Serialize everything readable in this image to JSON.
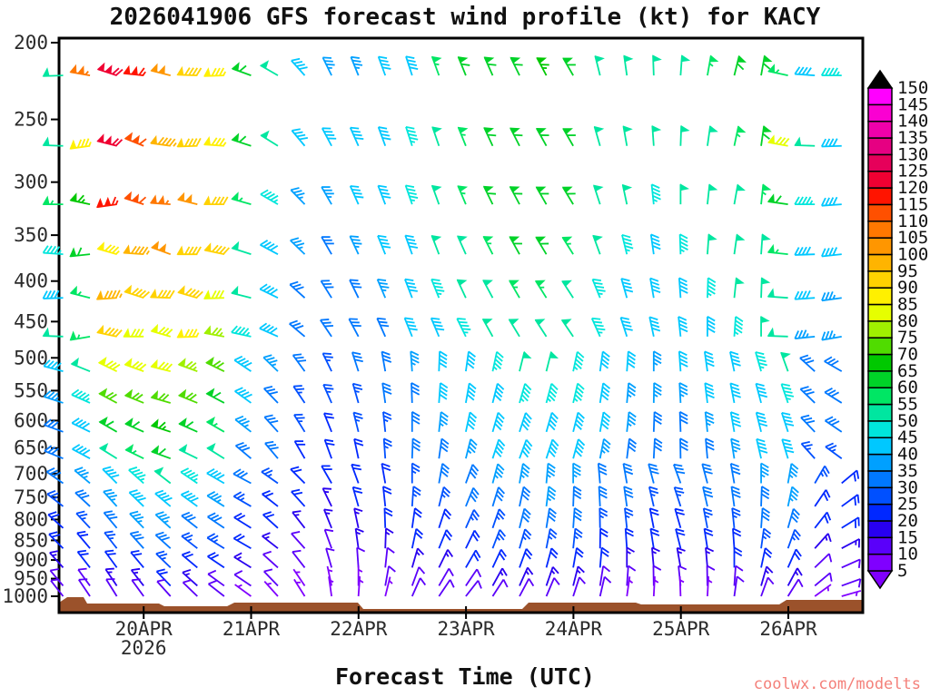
{
  "title": "2026041906 GFS forecast wind profile (kt) for KACY",
  "xaxis": {
    "title": "Forecast Time (UTC)",
    "tick_labels": [
      "20APR",
      "21APR",
      "22APR",
      "23APR",
      "24APR",
      "25APR",
      "26APR"
    ],
    "year_label": "2026"
  },
  "yaxis": {
    "tick_labels": [
      "200",
      "250",
      "300",
      "350",
      "400",
      "450",
      "500",
      "550",
      "600",
      "650",
      "700",
      "750",
      "800",
      "850",
      "900",
      "950",
      "1000"
    ],
    "tick_values": [
      200,
      250,
      300,
      350,
      400,
      450,
      500,
      550,
      600,
      650,
      700,
      750,
      800,
      850,
      900,
      950,
      1000
    ]
  },
  "watermark": {
    "text": "coolwx.com/modelts",
    "color": "#f4807a"
  },
  "terrain": {
    "color": "#9b522b"
  },
  "colorbar": {
    "tick_labels": [
      "5",
      "10",
      "15",
      "20",
      "25",
      "30",
      "35",
      "40",
      "45",
      "50",
      "55",
      "60",
      "65",
      "70",
      "75",
      "80",
      "85",
      "90",
      "95",
      "100",
      "105",
      "110",
      "115",
      "120",
      "125",
      "130",
      "135",
      "140",
      "145",
      "150"
    ],
    "interval_colors_ascending": [
      "#8000FF",
      "#5A00FA",
      "#2800F0",
      "#0028FF",
      "#0050FF",
      "#0078FF",
      "#00A0FF",
      "#00C8FF",
      "#00E6DC",
      "#00E6A0",
      "#00E664",
      "#00D228",
      "#00C800",
      "#50DC00",
      "#A0F000",
      "#E6FF00",
      "#FFF000",
      "#FFD200",
      "#FFB400",
      "#FF9600",
      "#FF7800",
      "#FF5000",
      "#FF1400",
      "#F00032",
      "#E6005A",
      "#E60082",
      "#F000AA",
      "#FA00D2",
      "#FF00FF"
    ],
    "over_arrow_color": "#000000",
    "under_arrow_color": "#8000FF"
  },
  "chart_data": {
    "type": "wind-barb",
    "model": "GFS",
    "run": "2026041906",
    "station": "KACY",
    "units": "kt",
    "pressure_axis": {
      "min_hpa": 200,
      "max_hpa": 1000,
      "scale": "log"
    },
    "time_axis": {
      "start": "19APR 06Z",
      "end": "26APR 12Z",
      "step_hours": 6,
      "day_labels": [
        "20APR",
        "21APR",
        "22APR",
        "23APR",
        "24APR",
        "25APR",
        "26APR"
      ],
      "year": "2026"
    },
    "times": [
      "19/06Z",
      "19/12Z",
      "19/18Z",
      "20/00Z",
      "20/06Z",
      "20/12Z",
      "20/18Z",
      "21/00Z",
      "21/06Z",
      "21/12Z",
      "21/18Z",
      "22/00Z",
      "22/06Z",
      "22/12Z",
      "22/18Z",
      "23/00Z",
      "23/06Z",
      "23/12Z",
      "23/18Z",
      "24/00Z",
      "24/06Z",
      "24/12Z",
      "24/18Z",
      "25/00Z",
      "25/06Z",
      "25/12Z",
      "25/18Z",
      "26/00Z",
      "26/06Z",
      "26/12Z"
    ],
    "series": [
      {
        "level_hpa": 220,
        "speeds_kt": [
          50,
          105,
          118,
          115,
          100,
          90,
          85,
          60,
          48,
          38,
          35,
          35,
          38,
          42,
          55,
          58,
          60,
          62,
          65,
          60,
          52,
          50,
          50,
          52,
          55,
          58,
          62,
          55,
          38,
          45
        ],
        "dirs_deg": [
          268,
          280,
          288,
          276,
          284,
          272,
          268,
          290,
          300,
          318,
          334,
          338,
          340,
          342,
          340,
          338,
          336,
          334,
          332,
          330,
          346,
          352,
          358,
          4,
          10,
          14,
          10,
          282,
          274,
          270
        ]
      },
      {
        "level_hpa": 270,
        "speeds_kt": [
          48,
          85,
          118,
          112,
          95,
          88,
          85,
          60,
          50,
          40,
          38,
          38,
          40,
          45,
          52,
          55,
          58,
          60,
          62,
          58,
          52,
          50,
          48,
          50,
          52,
          55,
          58,
          82,
          50,
          40
        ],
        "dirs_deg": [
          272,
          262,
          284,
          292,
          278,
          268,
          274,
          288,
          302,
          320,
          332,
          336,
          340,
          342,
          341,
          338,
          335,
          333,
          331,
          330,
          344,
          350,
          356,
          2,
          8,
          12,
          8,
          280,
          272,
          268
        ]
      },
      {
        "level_hpa": 320,
        "speeds_kt": [
          55,
          65,
          115,
          110,
          105,
          98,
          88,
          55,
          45,
          35,
          35,
          38,
          40,
          45,
          50,
          55,
          58,
          60,
          60,
          58,
          50,
          48,
          45,
          48,
          50,
          52,
          55,
          60,
          45,
          40
        ],
        "dirs_deg": [
          270,
          282,
          262,
          288,
          274,
          284,
          270,
          286,
          300,
          316,
          330,
          336,
          339,
          341,
          340,
          337,
          334,
          332,
          330,
          329,
          342,
          348,
          354,
          0,
          6,
          10,
          6,
          278,
          270,
          266
        ]
      },
      {
        "level_hpa": 370,
        "speeds_kt": [
          45,
          58,
          85,
          95,
          100,
          92,
          88,
          52,
          42,
          35,
          32,
          35,
          38,
          42,
          48,
          52,
          55,
          58,
          58,
          55,
          48,
          45,
          42,
          45,
          48,
          50,
          52,
          55,
          40,
          38
        ],
        "dirs_deg": [
          274,
          264,
          286,
          274,
          290,
          270,
          282,
          288,
          298,
          314,
          330,
          335,
          338,
          340,
          339,
          336,
          333,
          331,
          329,
          328,
          340,
          346,
          352,
          358,
          4,
          8,
          4,
          276,
          268,
          264
        ]
      },
      {
        "level_hpa": 420,
        "speeds_kt": [
          42,
          55,
          95,
          92,
          88,
          90,
          82,
          48,
          40,
          32,
          30,
          32,
          35,
          40,
          45,
          48,
          52,
          55,
          55,
          52,
          45,
          42,
          40,
          42,
          45,
          48,
          50,
          52,
          38,
          36
        ],
        "dirs_deg": [
          268,
          284,
          266,
          288,
          272,
          286,
          268,
          284,
          296,
          312,
          328,
          334,
          337,
          339,
          338,
          335,
          332,
          330,
          328,
          327,
          338,
          344,
          350,
          356,
          2,
          6,
          2,
          274,
          266,
          262
        ]
      },
      {
        "level_hpa": 470,
        "speeds_kt": [
          48,
          55,
          88,
          82,
          80,
          85,
          75,
          45,
          38,
          30,
          28,
          30,
          32,
          38,
          42,
          45,
          48,
          50,
          52,
          50,
          45,
          40,
          38,
          40,
          42,
          45,
          48,
          50,
          35,
          34
        ],
        "dirs_deg": [
          272,
          260,
          282,
          270,
          286,
          268,
          280,
          282,
          294,
          310,
          326,
          332,
          336,
          338,
          337,
          334,
          331,
          329,
          327,
          326,
          336,
          342,
          348,
          354,
          0,
          4,
          0,
          272,
          264,
          260
        ]
      },
      {
        "level_hpa": 520,
        "speeds_kt": [
          38,
          48,
          78,
          80,
          82,
          75,
          68,
          42,
          35,
          28,
          26,
          28,
          30,
          35,
          40,
          42,
          45,
          48,
          48,
          46,
          42,
          38,
          35,
          38,
          40,
          42,
          45,
          48,
          32,
          32
        ],
        "dirs_deg": [
          285,
          292,
          296,
          290,
          284,
          290,
          296,
          304,
          314,
          324,
          334,
          342,
          350,
          356,
          2,
          8,
          12,
          14,
          14,
          12,
          8,
          4,
          0,
          356,
          352,
          348,
          344,
          340,
          312,
          300
        ]
      },
      {
        "level_hpa": 570,
        "speeds_kt": [
          35,
          45,
          72,
          68,
          72,
          68,
          62,
          38,
          32,
          26,
          25,
          26,
          28,
          32,
          38,
          40,
          42,
          45,
          45,
          44,
          40,
          36,
          34,
          35,
          38,
          40,
          42,
          45,
          30,
          30
        ],
        "dirs_deg": [
          288,
          294,
          298,
          292,
          286,
          292,
          298,
          306,
          316,
          326,
          336,
          344,
          352,
          358,
          4,
          10,
          14,
          16,
          15,
          13,
          9,
          5,
          1,
          357,
          353,
          349,
          345,
          341,
          314,
          302
        ]
      },
      {
        "level_hpa": 620,
        "speeds_kt": [
          32,
          42,
          58,
          62,
          65,
          60,
          55,
          35,
          30,
          24,
          22,
          25,
          26,
          30,
          35,
          38,
          40,
          42,
          42,
          40,
          38,
          34,
          32,
          32,
          35,
          38,
          40,
          42,
          28,
          28
        ],
        "dirs_deg": [
          290,
          296,
          300,
          294,
          288,
          294,
          300,
          308,
          318,
          328,
          338,
          346,
          354,
          0,
          6,
          12,
          16,
          18,
          16,
          14,
          10,
          6,
          2,
          358,
          354,
          350,
          346,
          342,
          316,
          304
        ]
      },
      {
        "level_hpa": 670,
        "speeds_kt": [
          30,
          38,
          48,
          55,
          58,
          52,
          48,
          32,
          28,
          22,
          20,
          22,
          25,
          28,
          32,
          35,
          38,
          40,
          40,
          38,
          35,
          32,
          30,
          30,
          32,
          35,
          38,
          40,
          26,
          25
        ],
        "dirs_deg": [
          292,
          298,
          302,
          296,
          290,
          296,
          302,
          310,
          320,
          330,
          340,
          348,
          356,
          2,
          8,
          14,
          18,
          20,
          18,
          15,
          11,
          7,
          3,
          359,
          355,
          351,
          347,
          343,
          318,
          306
        ]
      },
      {
        "level_hpa": 720,
        "speeds_kt": [
          28,
          34,
          42,
          46,
          48,
          45,
          40,
          28,
          25,
          20,
          18,
          20,
          22,
          26,
          30,
          32,
          34,
          36,
          36,
          35,
          32,
          30,
          28,
          28,
          30,
          32,
          34,
          36,
          24,
          22
        ],
        "dirs_deg": [
          305,
          310,
          315,
          312,
          308,
          304,
          300,
          298,
          305,
          315,
          330,
          340,
          350,
          0,
          10,
          20,
          15,
          10,
          5,
          0,
          355,
          350,
          345,
          340,
          345,
          350,
          0,
          10,
          30,
          50
        ]
      },
      {
        "level_hpa": 770,
        "speeds_kt": [
          25,
          30,
          36,
          40,
          42,
          38,
          34,
          25,
          22,
          18,
          16,
          18,
          20,
          24,
          26,
          28,
          30,
          32,
          33,
          32,
          30,
          28,
          25,
          25,
          28,
          30,
          32,
          33,
          22,
          20
        ],
        "dirs_deg": [
          308,
          313,
          318,
          314,
          310,
          306,
          302,
          300,
          308,
          318,
          334,
          344,
          354,
          4,
          14,
          22,
          17,
          12,
          7,
          2,
          357,
          352,
          347,
          342,
          347,
          352,
          2,
          12,
          34,
          54
        ]
      },
      {
        "level_hpa": 820,
        "speeds_kt": [
          22,
          26,
          30,
          34,
          35,
          32,
          28,
          22,
          20,
          15,
          14,
          16,
          18,
          20,
          22,
          25,
          26,
          28,
          30,
          28,
          26,
          25,
          22,
          22,
          25,
          26,
          28,
          30,
          20,
          18
        ],
        "dirs_deg": [
          312,
          317,
          320,
          316,
          312,
          308,
          304,
          302,
          312,
          322,
          338,
          348,
          358,
          8,
          18,
          24,
          19,
          14,
          9,
          4,
          359,
          354,
          349,
          344,
          349,
          354,
          4,
          16,
          38,
          58
        ]
      },
      {
        "level_hpa": 870,
        "speeds_kt": [
          18,
          22,
          25,
          28,
          30,
          26,
          24,
          18,
          16,
          12,
          12,
          14,
          15,
          18,
          20,
          22,
          24,
          25,
          26,
          25,
          22,
          20,
          18,
          18,
          20,
          22,
          25,
          26,
          16,
          15
        ],
        "dirs_deg": [
          315,
          320,
          322,
          318,
          312,
          308,
          302,
          300,
          308,
          318,
          340,
          352,
          2,
          12,
          22,
          26,
          21,
          16,
          11,
          6,
          1,
          356,
          351,
          346,
          351,
          356,
          8,
          20,
          42,
          62
        ]
      },
      {
        "level_hpa": 920,
        "speeds_kt": [
          15,
          18,
          20,
          22,
          25,
          22,
          20,
          15,
          12,
          10,
          8,
          10,
          12,
          14,
          16,
          18,
          20,
          22,
          22,
          20,
          18,
          16,
          14,
          14,
          16,
          18,
          20,
          22,
          12,
          12
        ],
        "dirs_deg": [
          318,
          322,
          324,
          320,
          314,
          310,
          304,
          302,
          312,
          322,
          344,
          356,
          6,
          16,
          26,
          30,
          25,
          20,
          15,
          10,
          5,
          0,
          355,
          350,
          355,
          0,
          12,
          24,
          46,
          66
        ]
      },
      {
        "level_hpa": 970,
        "speeds_kt": [
          10,
          12,
          15,
          16,
          18,
          15,
          12,
          10,
          8,
          6,
          5,
          6,
          8,
          10,
          12,
          12,
          14,
          15,
          15,
          14,
          12,
          10,
          8,
          8,
          10,
          12,
          14,
          16,
          8,
          8
        ],
        "dirs_deg": [
          320,
          324,
          326,
          322,
          316,
          312,
          306,
          304,
          316,
          326,
          348,
          0,
          10,
          20,
          30,
          34,
          29,
          24,
          19,
          14,
          9,
          4,
          359,
          354,
          359,
          4,
          16,
          28,
          50,
          70
        ]
      },
      {
        "level_hpa": 1000,
        "speeds_kt": [
          8,
          10,
          10,
          12,
          12,
          10,
          8,
          6,
          5,
          5,
          5,
          5,
          6,
          8,
          8,
          10,
          10,
          10,
          12,
          10,
          8,
          6,
          5,
          5,
          6,
          8,
          10,
          10,
          6,
          5
        ],
        "dirs_deg": [
          322,
          326,
          328,
          324,
          318,
          314,
          308,
          306,
          318,
          328,
          352,
          4,
          14,
          24,
          34,
          38,
          33,
          28,
          23,
          18,
          13,
          8,
          3,
          358,
          3,
          8,
          20,
          32,
          54,
          74
        ]
      }
    ]
  }
}
